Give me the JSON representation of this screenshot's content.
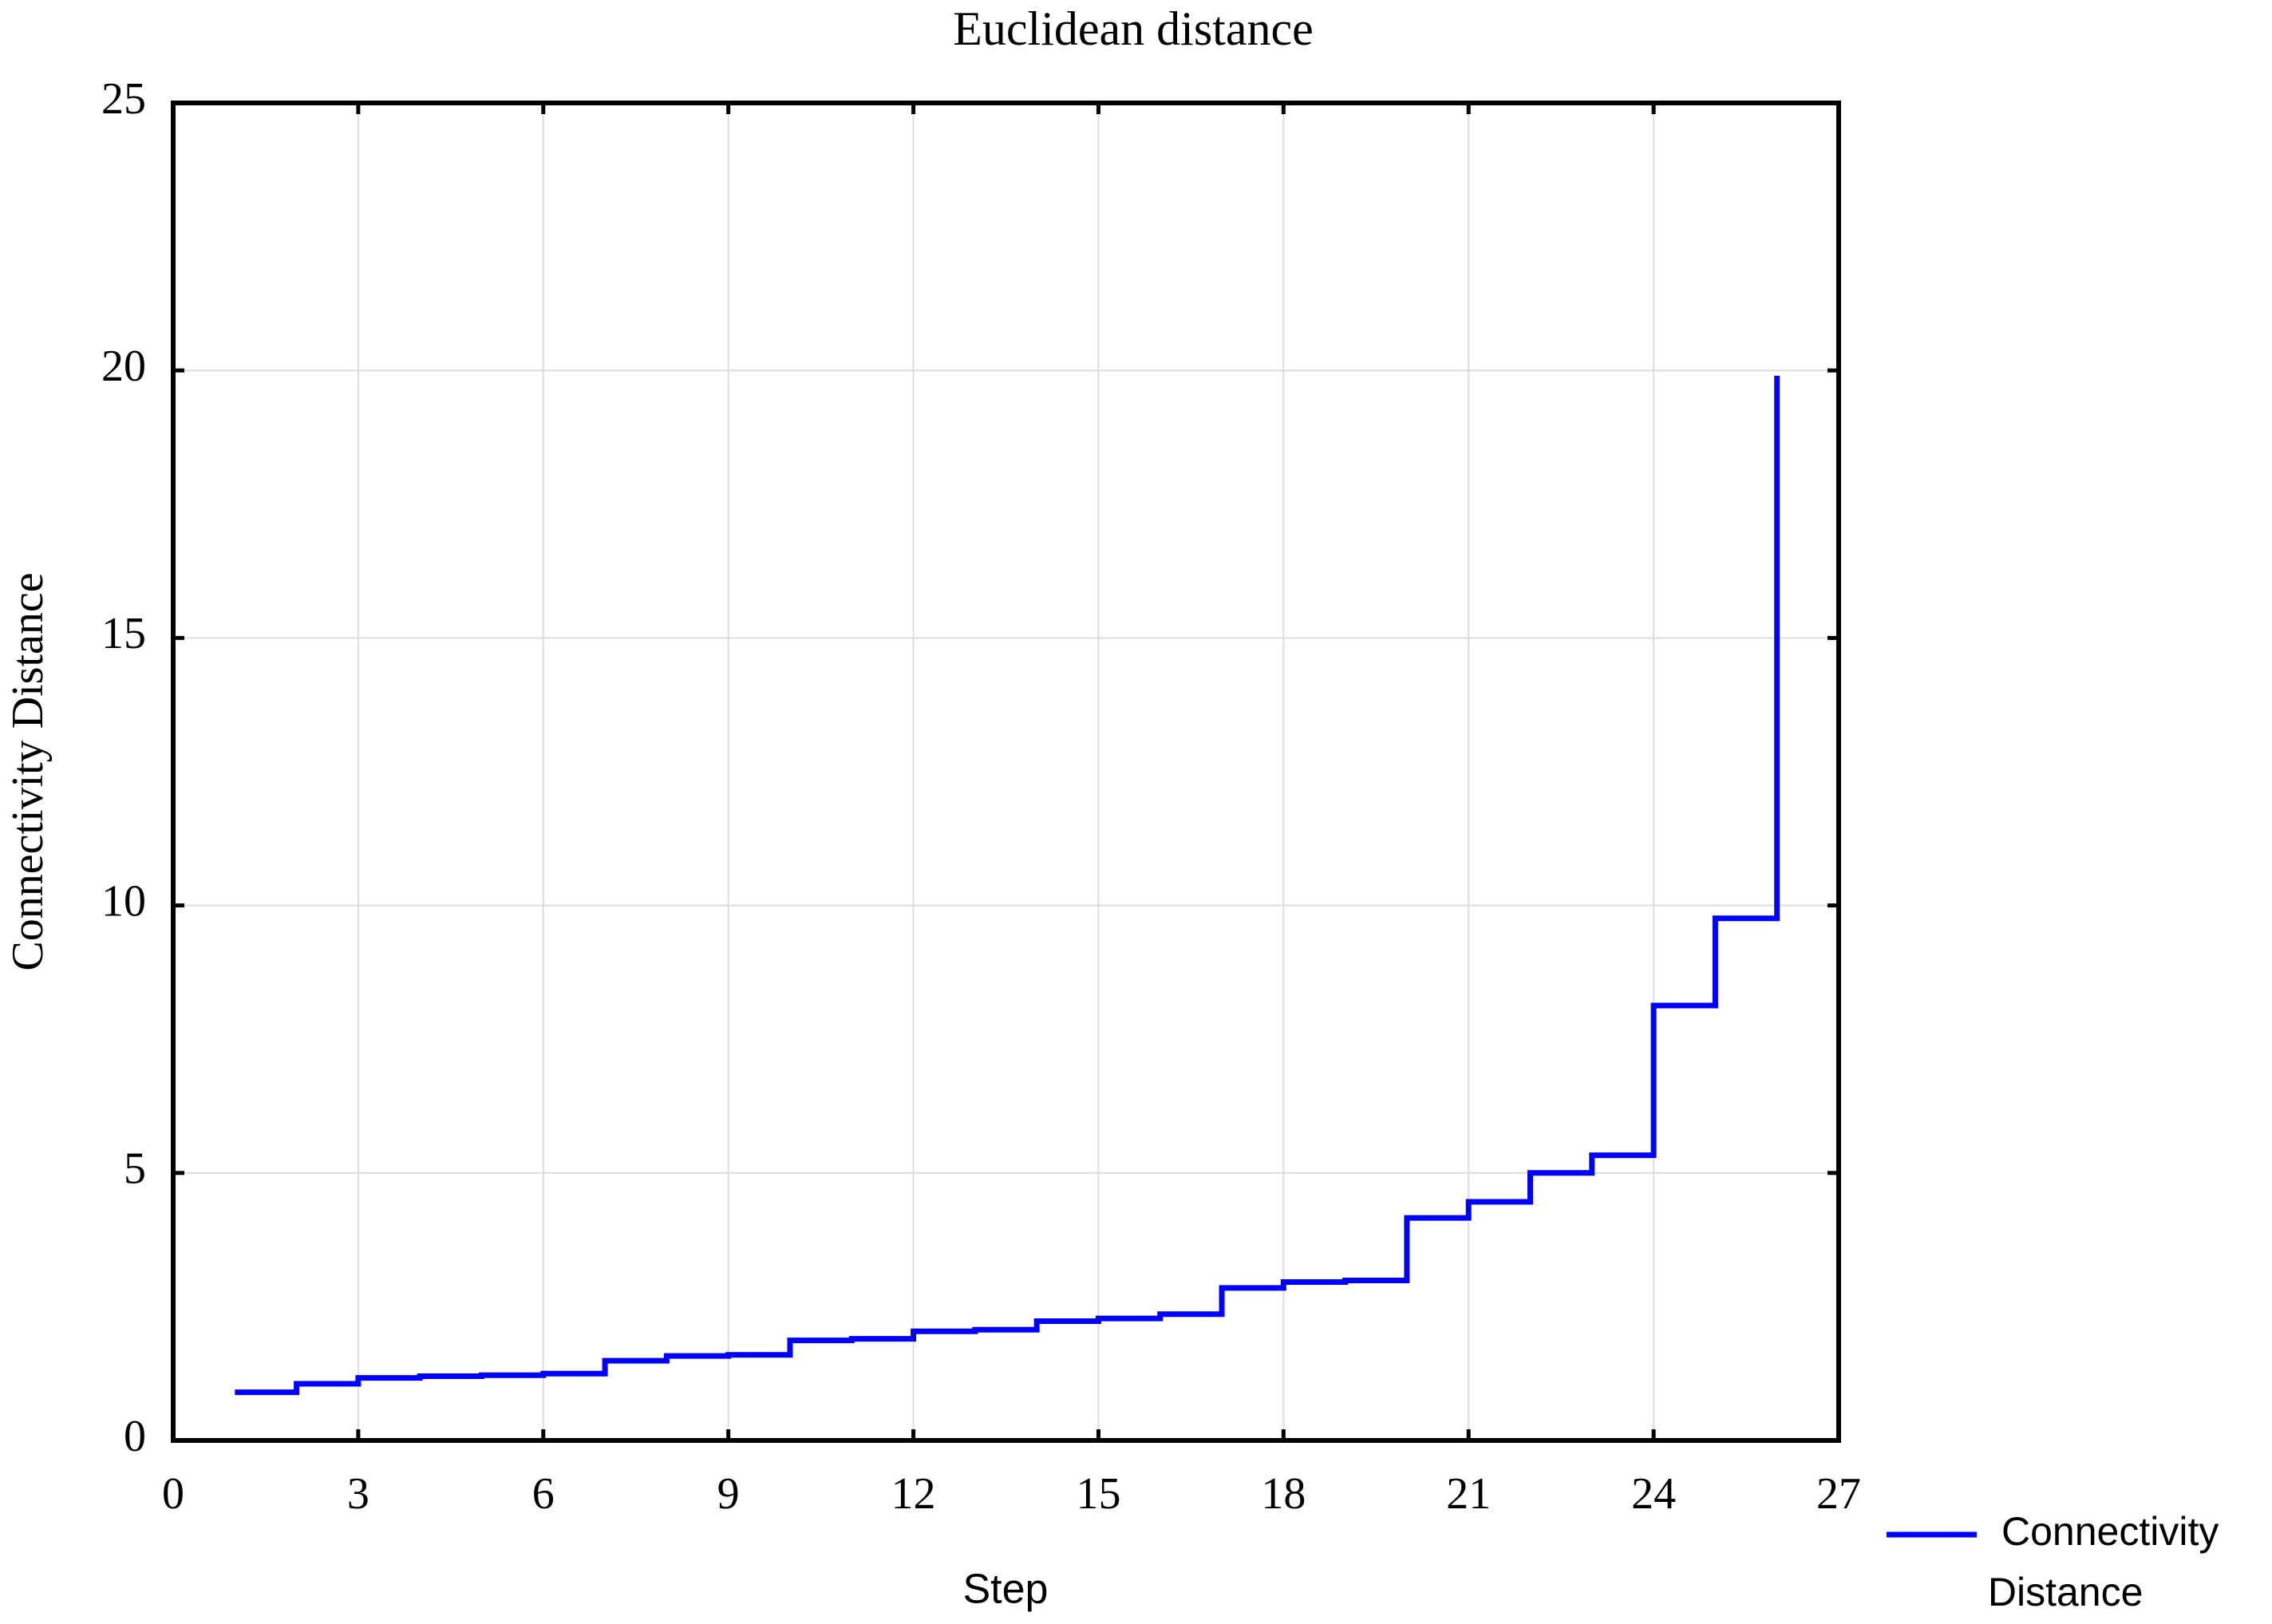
{
  "chart_data": {
    "type": "step",
    "title": "Euclidean distance",
    "x_label": "Step",
    "y_label": "Connectivity Distance",
    "x": [
      1,
      2,
      3,
      4,
      5,
      6,
      7,
      8,
      9,
      10,
      11,
      12,
      13,
      14,
      15,
      16,
      17,
      18,
      19,
      20,
      21,
      22,
      23,
      24,
      25,
      26
    ],
    "series": [
      {
        "name": "Connectivity Distance",
        "color": "#0000ff",
        "values": [
          0.9,
          1.06,
          1.17,
          1.2,
          1.22,
          1.25,
          1.49,
          1.58,
          1.6,
          1.87,
          1.9,
          2.04,
          2.07,
          2.23,
          2.28,
          2.36,
          2.85,
          2.96,
          2.99,
          4.16,
          4.46,
          5.0,
          5.33,
          8.13,
          9.76,
          19.9
        ]
      }
    ],
    "xlim": [
      0,
      27
    ],
    "xticks": [
      0,
      3,
      6,
      9,
      12,
      15,
      18,
      21,
      24,
      27
    ],
    "ylim": [
      0,
      25
    ],
    "yticks": [
      0,
      5,
      10,
      15,
      20,
      25
    ],
    "grid": true,
    "legend": "bottom-right"
  }
}
